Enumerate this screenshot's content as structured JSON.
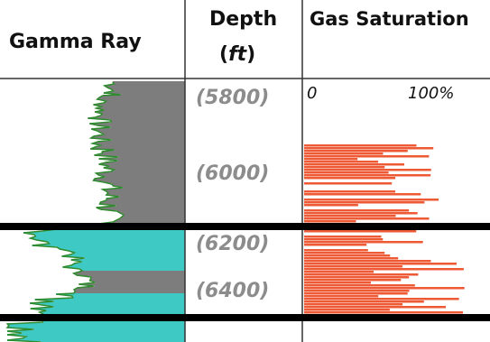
{
  "headers": {
    "gamma_ray": "Gamma Ray",
    "depth": "Depth",
    "depth_unit_open": "(",
    "depth_unit": "ft",
    "depth_unit_close": ")",
    "gas_saturation": "Gas Saturation"
  },
  "depth_labels": [
    "(5800)",
    "(6000)",
    "(6200)",
    "(6400)"
  ],
  "saturation_scale": {
    "min_label": "0",
    "max_label": "100%"
  },
  "colors": {
    "shale_fill": "#7d7d7d",
    "sand_fill": "#3fc9c4",
    "gamma_curve": "#2e8b2e",
    "gas_fill": "#ef5a36",
    "zone_boundary": "#000000",
    "gridline": "#333333",
    "depth_text": "#8c8c8c"
  }
}
